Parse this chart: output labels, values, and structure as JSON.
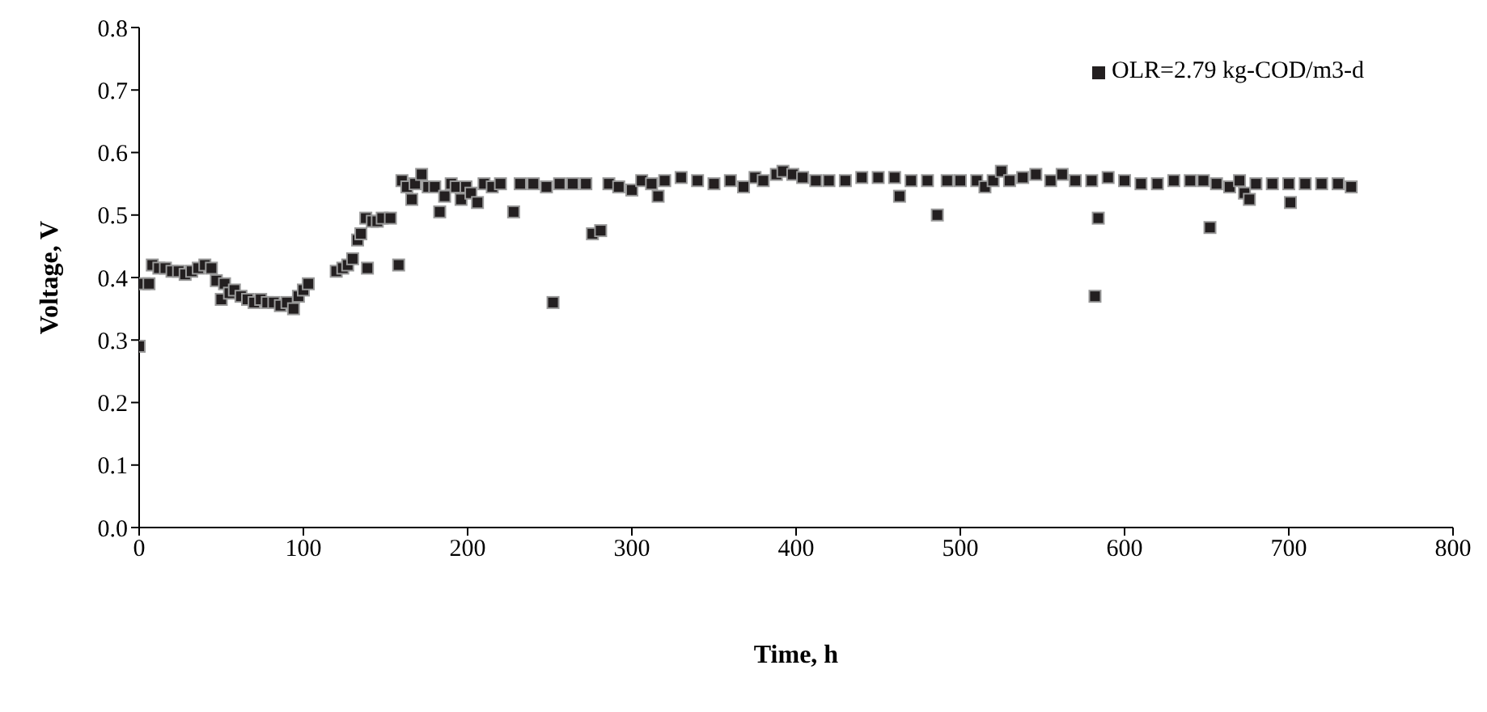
{
  "chart_data": {
    "type": "scatter",
    "xlabel": "Time, h",
    "ylabel": "Voltage, V",
    "xlim": [
      0,
      800
    ],
    "xticks": [
      0,
      100,
      200,
      300,
      400,
      500,
      600,
      700,
      800
    ],
    "ylim": [
      0,
      0.8
    ],
    "yticks": [
      {
        "value": 0,
        "label": "0.0"
      },
      {
        "value": 0.1,
        "label": "0.1"
      },
      {
        "value": 0.2,
        "label": "0.2"
      },
      {
        "value": 0.3,
        "label": "0.3"
      },
      {
        "value": 0.4,
        "label": "0.4"
      },
      {
        "value": 0.5,
        "label": "0.5"
      },
      {
        "value": 0.6,
        "label": "0.6"
      },
      {
        "value": 0.7,
        "label": "0.7"
      },
      {
        "value": 0.8,
        "label": "0.8"
      }
    ],
    "grid": false,
    "legend": "top right",
    "marker": "square",
    "series": [
      {
        "name": "OLR=2.79 kg-COD/m3-d",
        "color": "#231f20",
        "x": [
          0,
          3,
          6,
          8,
          12,
          16,
          20,
          24,
          28,
          32,
          36,
          40,
          44,
          47,
          50,
          52,
          55,
          58,
          62,
          66,
          70,
          74,
          78,
          82,
          86,
          90,
          94,
          97,
          100,
          103,
          120,
          124,
          127,
          130,
          133,
          135,
          138,
          139,
          142,
          145,
          148,
          153,
          158,
          160,
          163,
          166,
          168,
          172,
          176,
          180,
          183,
          186,
          190,
          193,
          196,
          199,
          202,
          206,
          210,
          215,
          220,
          228,
          232,
          240,
          248,
          252,
          256,
          264,
          272,
          276,
          281,
          286,
          292,
          300,
          306,
          312,
          316,
          320,
          330,
          340,
          350,
          360,
          368,
          375,
          380,
          388,
          392,
          398,
          404,
          412,
          420,
          430,
          440,
          450,
          460,
          463,
          470,
          480,
          486,
          492,
          500,
          510,
          515,
          520,
          525,
          530,
          538,
          546,
          555,
          562,
          570,
          580,
          582,
          584,
          590,
          600,
          610,
          620,
          630,
          640,
          648,
          652,
          656,
          664,
          670,
          673,
          676,
          680,
          690,
          700,
          701,
          710,
          720,
          730,
          738
        ],
        "values": [
          0.29,
          0.39,
          0.39,
          0.42,
          0.415,
          0.415,
          0.41,
          0.41,
          0.405,
          0.41,
          0.415,
          0.42,
          0.415,
          0.395,
          0.365,
          0.39,
          0.375,
          0.38,
          0.37,
          0.365,
          0.36,
          0.365,
          0.36,
          0.36,
          0.355,
          0.36,
          0.35,
          0.37,
          0.38,
          0.39,
          0.41,
          0.415,
          0.42,
          0.43,
          0.46,
          0.47,
          0.495,
          0.415,
          0.49,
          0.49,
          0.495,
          0.495,
          0.42,
          0.555,
          0.545,
          0.525,
          0.55,
          0.565,
          0.545,
          0.545,
          0.505,
          0.53,
          0.55,
          0.545,
          0.525,
          0.545,
          0.535,
          0.52,
          0.55,
          0.545,
          0.55,
          0.505,
          0.55,
          0.55,
          0.545,
          0.36,
          0.55,
          0.55,
          0.55,
          0.47,
          0.475,
          0.55,
          0.545,
          0.54,
          0.555,
          0.55,
          0.53,
          0.555,
          0.56,
          0.555,
          0.55,
          0.555,
          0.545,
          0.56,
          0.555,
          0.565,
          0.57,
          0.565,
          0.56,
          0.555,
          0.555,
          0.555,
          0.56,
          0.56,
          0.56,
          0.53,
          0.555,
          0.555,
          0.5,
          0.555,
          0.555,
          0.555,
          0.545,
          0.555,
          0.57,
          0.555,
          0.56,
          0.565,
          0.555,
          0.565,
          0.555,
          0.555,
          0.37,
          0.495,
          0.56,
          0.555,
          0.55,
          0.55,
          0.555,
          0.555,
          0.555,
          0.48,
          0.55,
          0.545,
          0.555,
          0.535,
          0.525,
          0.55,
          0.55,
          0.55,
          0.52,
          0.55,
          0.55,
          0.55,
          0.545
        ]
      }
    ]
  }
}
